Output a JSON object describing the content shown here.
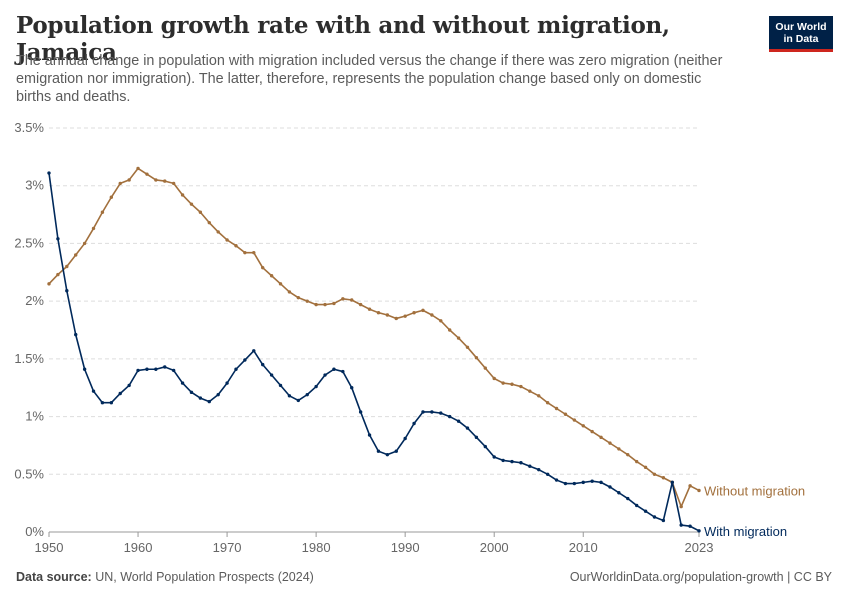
{
  "header": {
    "title": "Population growth rate with and without migration, Jamaica",
    "subtitle": "The annual change in population with migration included versus the change if there was zero migration (neither emigration nor immigration). The latter, therefore, represents the population change based only on domestic births and deaths.",
    "logo_line1": "Our World",
    "logo_line2": "in Data"
  },
  "footer": {
    "source_label": "Data source:",
    "source_text": " UN, World Population Prospects (2024)",
    "credit": "OurWorldinData.org/population-growth | CC BY"
  },
  "chart_data": {
    "type": "line",
    "title": "Population growth rate with and without migration, Jamaica",
    "xlabel": "",
    "ylabel": "",
    "xlim": [
      1950,
      2023
    ],
    "ylim": [
      0,
      3.5
    ],
    "grid": true,
    "legend": "right-end labels",
    "x_ticks": [
      1950,
      1960,
      1970,
      1980,
      1990,
      2000,
      2010,
      2023
    ],
    "x_tick_labels": [
      "1950",
      "1960",
      "1970",
      "1980",
      "1990",
      "2000",
      "2010",
      "2023"
    ],
    "y_ticks": [
      0,
      0.5,
      1,
      1.5,
      2,
      2.5,
      3,
      3.5
    ],
    "y_tick_labels": [
      "0%",
      "0.5%",
      "1%",
      "1.5%",
      "2%",
      "2.5%",
      "3%",
      "3.5%"
    ],
    "x": [
      1950,
      1951,
      1952,
      1953,
      1954,
      1955,
      1956,
      1957,
      1958,
      1959,
      1960,
      1961,
      1962,
      1963,
      1964,
      1965,
      1966,
      1967,
      1968,
      1969,
      1970,
      1971,
      1972,
      1973,
      1974,
      1975,
      1976,
      1977,
      1978,
      1979,
      1980,
      1981,
      1982,
      1983,
      1984,
      1985,
      1986,
      1987,
      1988,
      1989,
      1990,
      1991,
      1992,
      1993,
      1994,
      1995,
      1996,
      1997,
      1998,
      1999,
      2000,
      2001,
      2002,
      2003,
      2004,
      2005,
      2006,
      2007,
      2008,
      2009,
      2010,
      2011,
      2012,
      2013,
      2014,
      2015,
      2016,
      2017,
      2018,
      2019,
      2020,
      2021,
      2022,
      2023
    ],
    "series": [
      {
        "name": "Without migration",
        "color": "#a2703d",
        "values": [
          2.15,
          2.23,
          2.3,
          2.4,
          2.5,
          2.63,
          2.77,
          2.9,
          3.02,
          3.05,
          3.15,
          3.1,
          3.05,
          3.04,
          3.02,
          2.92,
          2.84,
          2.77,
          2.68,
          2.6,
          2.53,
          2.48,
          2.42,
          2.42,
          2.29,
          2.22,
          2.15,
          2.08,
          2.03,
          2.0,
          1.97,
          1.97,
          1.98,
          2.02,
          2.01,
          1.97,
          1.93,
          1.9,
          1.88,
          1.85,
          1.87,
          1.9,
          1.92,
          1.88,
          1.83,
          1.75,
          1.68,
          1.6,
          1.51,
          1.42,
          1.33,
          1.29,
          1.28,
          1.26,
          1.22,
          1.18,
          1.12,
          1.07,
          1.02,
          0.97,
          0.92,
          0.87,
          0.82,
          0.77,
          0.72,
          0.67,
          0.61,
          0.56,
          0.5,
          0.47,
          0.43,
          0.22,
          0.4,
          0.36
        ]
      },
      {
        "name": "With migration",
        "color": "#00295b",
        "values": [
          3.11,
          2.54,
          2.09,
          1.71,
          1.41,
          1.22,
          1.12,
          1.12,
          1.2,
          1.27,
          1.4,
          1.41,
          1.41,
          1.43,
          1.4,
          1.29,
          1.21,
          1.16,
          1.13,
          1.19,
          1.29,
          1.41,
          1.49,
          1.57,
          1.45,
          1.36,
          1.27,
          1.18,
          1.14,
          1.19,
          1.26,
          1.36,
          1.41,
          1.39,
          1.25,
          1.04,
          0.84,
          0.7,
          0.67,
          0.7,
          0.81,
          0.94,
          1.04,
          1.04,
          1.03,
          1.0,
          0.96,
          0.9,
          0.82,
          0.74,
          0.65,
          0.62,
          0.61,
          0.6,
          0.57,
          0.54,
          0.5,
          0.45,
          0.42,
          0.42,
          0.43,
          0.44,
          0.43,
          0.39,
          0.34,
          0.29,
          0.23,
          0.18,
          0.13,
          0.1,
          0.43,
          0.06,
          0.05,
          0.01
        ]
      }
    ]
  }
}
